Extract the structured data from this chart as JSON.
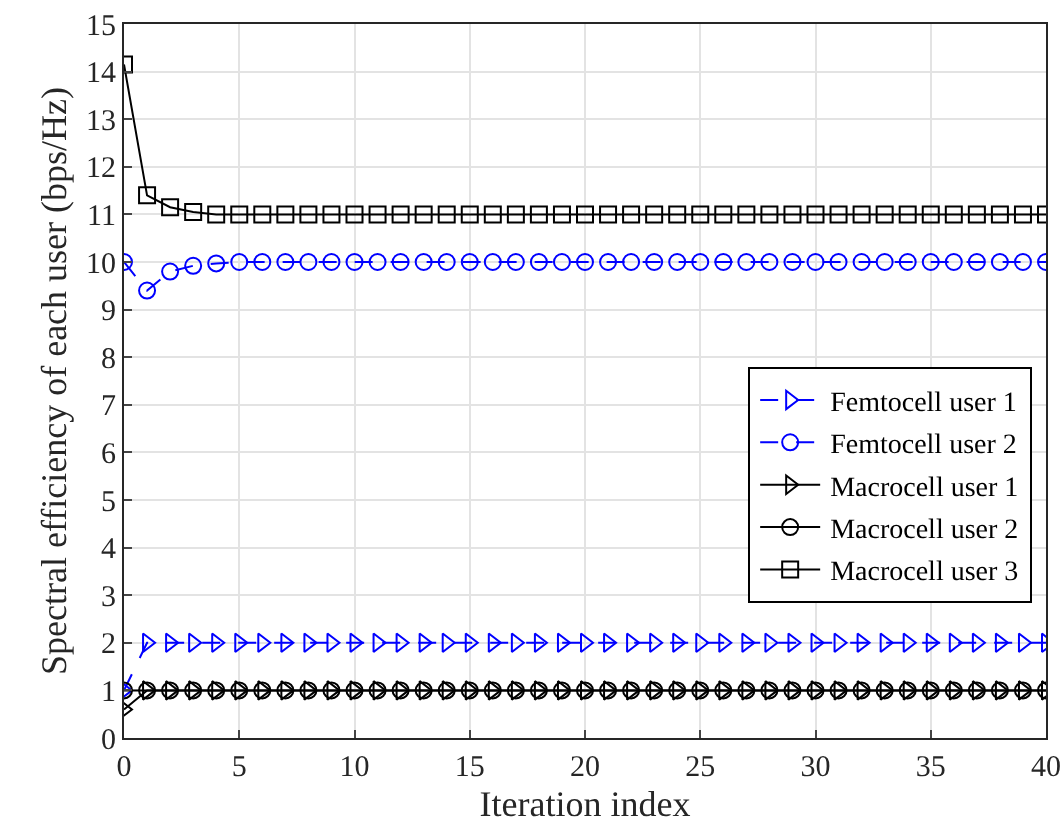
{
  "chart_data": {
    "type": "line",
    "xlabel": "Iteration index",
    "ylabel": "Spectral efficiency of each user (bps/Hz)",
    "x": [
      0,
      1,
      2,
      3,
      4,
      5,
      6,
      7,
      8,
      9,
      10,
      11,
      12,
      13,
      14,
      15,
      16,
      17,
      18,
      19,
      20,
      21,
      22,
      23,
      24,
      25,
      26,
      27,
      28,
      29,
      30,
      31,
      32,
      33,
      34,
      35,
      36,
      37,
      38,
      39,
      40
    ],
    "xlim": [
      0,
      40
    ],
    "xticks": [
      0,
      5,
      10,
      15,
      20,
      25,
      30,
      35,
      40
    ],
    "ylim": [
      0,
      15
    ],
    "yticks": [
      0,
      1,
      2,
      3,
      4,
      5,
      6,
      7,
      8,
      9,
      10,
      11,
      12,
      13,
      14,
      15
    ],
    "grid": true,
    "legend": "right",
    "series": [
      {
        "name": "Femtocell user 1",
        "color": "#0000ff",
        "marker": "triangle",
        "line_style": "dashed",
        "values": [
          1,
          2,
          2,
          2,
          2,
          2,
          2,
          2,
          2,
          2,
          2,
          2,
          2,
          2,
          2,
          2,
          2,
          2,
          2,
          2,
          2,
          2,
          2,
          2,
          2,
          2,
          2,
          2,
          2,
          2,
          2,
          2,
          2,
          2,
          2,
          2,
          2,
          2,
          2,
          2,
          2
        ]
      },
      {
        "name": "Femtocell user 2",
        "color": "#0000ff",
        "marker": "circle",
        "line_style": "dashed",
        "values": [
          10,
          9.4,
          9.8,
          9.92,
          9.97,
          10,
          10,
          10,
          10,
          10,
          10,
          10,
          10,
          10,
          10,
          10,
          10,
          10,
          10,
          10,
          10,
          10,
          10,
          10,
          10,
          10,
          10,
          10,
          10,
          10,
          10,
          10,
          10,
          10,
          10,
          10,
          10,
          10,
          10,
          10,
          10
        ]
      },
      {
        "name": "Macrocell user 1",
        "color": "#000000",
        "marker": "triangle",
        "line_style": "solid",
        "values": [
          0.6,
          1,
          1,
          1,
          1,
          1,
          1,
          1,
          1,
          1,
          1,
          1,
          1,
          1,
          1,
          1,
          1,
          1,
          1,
          1,
          1,
          1,
          1,
          1,
          1,
          1,
          1,
          1,
          1,
          1,
          1,
          1,
          1,
          1,
          1,
          1,
          1,
          1,
          1,
          1,
          1
        ]
      },
      {
        "name": "Macrocell user 2",
        "color": "#000000",
        "marker": "circle",
        "line_style": "solid",
        "values": [
          1,
          1,
          1,
          1,
          1,
          1,
          1,
          1,
          1,
          1,
          1,
          1,
          1,
          1,
          1,
          1,
          1,
          1,
          1,
          1,
          1,
          1,
          1,
          1,
          1,
          1,
          1,
          1,
          1,
          1,
          1,
          1,
          1,
          1,
          1,
          1,
          1,
          1,
          1,
          1,
          1
        ]
      },
      {
        "name": "Macrocell user 3",
        "color": "#000000",
        "marker": "square",
        "line_style": "solid",
        "values": [
          14.15,
          11.4,
          11.15,
          11.05,
          11,
          11,
          11,
          11,
          11,
          11,
          11,
          11,
          11,
          11,
          11,
          11,
          11,
          11,
          11,
          11,
          11,
          11,
          11,
          11,
          11,
          11,
          11,
          11,
          11,
          11,
          11,
          11,
          11,
          11,
          11,
          11,
          11,
          11,
          11,
          11,
          11
        ]
      }
    ]
  }
}
